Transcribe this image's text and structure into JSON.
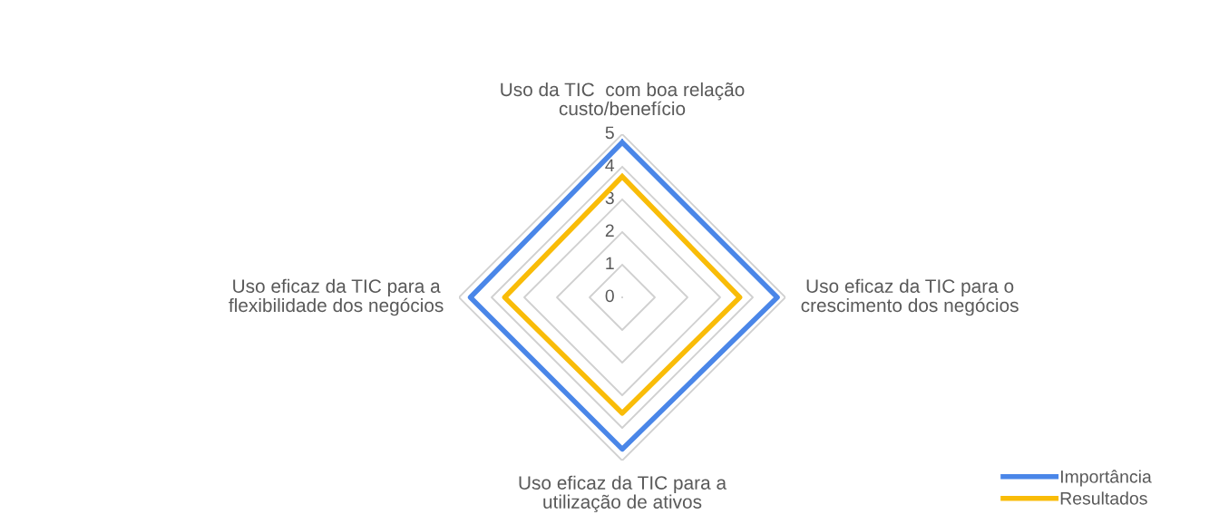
{
  "chart_data": {
    "type": "radar",
    "categories": [
      "Uso da TIC  com boa relação\ncusto/benefício",
      "Uso eficaz da TIC para o\ncrescimento dos negócios",
      "Uso eficaz da TIC para a\nutilização de ativos",
      "Uso eficaz da TIC para a\nflexibilidade dos negócios"
    ],
    "series": [
      {
        "name": "Importância",
        "color": "#4a86e8",
        "values": [
          4.75,
          4.75,
          4.65,
          4.65
        ]
      },
      {
        "name": "Resultados",
        "color": "#f9bc08",
        "values": [
          3.7,
          3.6,
          3.55,
          3.6
        ]
      }
    ],
    "ylim": [
      0,
      5
    ],
    "yticks": [
      0,
      1,
      2,
      3,
      4,
      5
    ],
    "grid": true,
    "legend": "bottom right",
    "marker": "none",
    "line_style": "solid"
  }
}
